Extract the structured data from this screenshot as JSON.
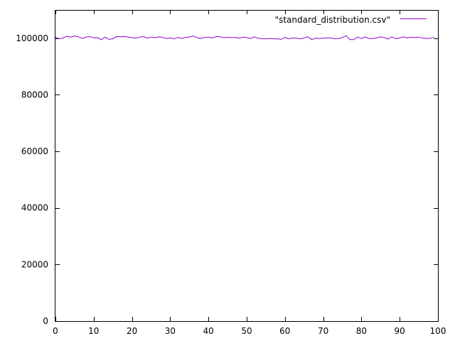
{
  "chart_data": {
    "type": "line",
    "title": "",
    "xlabel": "",
    "ylabel": "",
    "xlim": [
      0,
      100
    ],
    "ylim": [
      0,
      110000
    ],
    "x_ticks": [
      0,
      10,
      20,
      30,
      40,
      50,
      60,
      70,
      80,
      90,
      100
    ],
    "y_ticks": [
      0,
      20000,
      40000,
      60000,
      80000,
      100000
    ],
    "x_tick_labels": [
      "0",
      "10",
      "20",
      "30",
      "40",
      "50",
      "60",
      "70",
      "80",
      "90",
      "100"
    ],
    "y_tick_labels": [
      "0",
      "20000",
      "40000",
      "60000",
      "80000",
      "100000"
    ],
    "grid": false,
    "legend": {
      "placement": "top-right",
      "entries": [
        "\"standard_distribution.csv\""
      ]
    },
    "series": [
      {
        "name": "\"standard_distribution.csv\"",
        "color": "#9400d3",
        "x": [
          0,
          1,
          2,
          3,
          4,
          5,
          6,
          7,
          8,
          9,
          10,
          11,
          12,
          13,
          14,
          15,
          16,
          17,
          18,
          19,
          20,
          21,
          22,
          23,
          24,
          25,
          26,
          27,
          28,
          29,
          30,
          31,
          32,
          33,
          34,
          35,
          36,
          37,
          38,
          39,
          40,
          41,
          42,
          43,
          44,
          45,
          46,
          47,
          48,
          49,
          50,
          51,
          52,
          53,
          54,
          55,
          56,
          57,
          58,
          59,
          60,
          61,
          62,
          63,
          64,
          65,
          66,
          67,
          68,
          69,
          70,
          71,
          72,
          73,
          74,
          75,
          76,
          77,
          78,
          79,
          80,
          81,
          82,
          83,
          84,
          85,
          86,
          87,
          88,
          89,
          90,
          91,
          92,
          93,
          94,
          95,
          96,
          97,
          98,
          99
        ],
        "values": [
          100300,
          99800,
          100100,
          100700,
          100400,
          100800,
          100500,
          99900,
          100400,
          100600,
          100100,
          100200,
          99500,
          100400,
          99600,
          99800,
          100600,
          100500,
          100600,
          100400,
          100200,
          100000,
          100400,
          100600,
          100000,
          100400,
          100200,
          100500,
          100300,
          99900,
          100100,
          99800,
          100300,
          99900,
          100300,
          100400,
          100800,
          100200,
          99900,
          100300,
          100400,
          100100,
          100600,
          100500,
          100200,
          100300,
          100200,
          100300,
          100000,
          100400,
          100200,
          99900,
          100500,
          100000,
          99800,
          99800,
          99900,
          99800,
          99800,
          99600,
          100300,
          99800,
          100100,
          100000,
          99800,
          100100,
          100500,
          99500,
          100000,
          99900,
          100000,
          100100,
          100100,
          99800,
          99900,
          100200,
          100900,
          99500,
          99500,
          100400,
          99900,
          100400,
          99900,
          99900,
          100100,
          100500,
          100200,
          99700,
          100500,
          99800,
          100100,
          100500,
          100100,
          100400,
          100200,
          100400,
          100000,
          99900,
          100000,
          100400
        ]
      }
    ]
  }
}
